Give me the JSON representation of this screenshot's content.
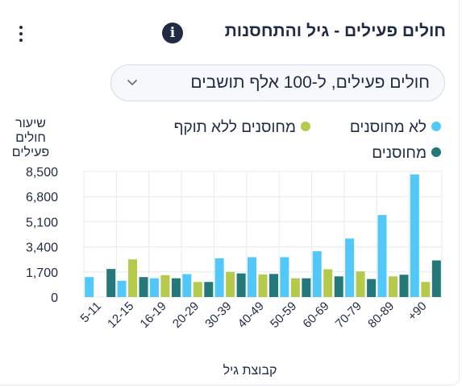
{
  "header": {
    "title": "חולים פעילים - גיל והתחסנות",
    "info_icon": "info-icon",
    "menu_icon": "kebab-menu-icon"
  },
  "select": {
    "value": "חולים פעילים, ל-100 אלף תושבים",
    "icon": "chevron-down-icon"
  },
  "colors": {
    "not_vaccinated": "#52c8f8",
    "expired": "#b5c94a",
    "vaccinated": "#24787a",
    "grid": "#e6e9ef",
    "axis_text": "#222b45"
  },
  "chart_data": {
    "type": "bar",
    "xlabel": "קבוצת גיל",
    "ylabel": "שיעור חולים פעילים",
    "ylim": [
      0,
      8500
    ],
    "yticks": [
      "0",
      "1,700",
      "3,400",
      "5,100",
      "6,800",
      "8,500"
    ],
    "ytick_values": [
      0,
      1700,
      3400,
      5100,
      6800,
      8500
    ],
    "grid": true,
    "legend_position": "top-right",
    "categories": [
      "5-11",
      "12-15",
      "16-19",
      "20-29",
      "30-39",
      "40-49",
      "50-59",
      "60-69",
      "70-79",
      "80-89",
      "90+"
    ],
    "category_labels": [
      "5-11",
      "12-15",
      "16-19",
      "20-29",
      "30-39",
      "40-49",
      "50-59",
      "60-69",
      "70-79",
      "80-89",
      "+90"
    ],
    "series": [
      {
        "name": "לא מחוסנים",
        "color": "#52c8f8",
        "values": [
          1350,
          1100,
          1270,
          1550,
          2620,
          2700,
          2700,
          3100,
          3960,
          5550,
          8300
        ]
      },
      {
        "name": "מחוסנים ללא תוקף",
        "color": "#b5c94a",
        "values": [
          null,
          2550,
          1480,
          1020,
          1700,
          1530,
          1270,
          1880,
          1730,
          1400,
          1020
        ]
      },
      {
        "name": "מחוסנים",
        "color": "#24787a",
        "values": [
          1900,
          1350,
          1270,
          1020,
          1600,
          1560,
          1270,
          1400,
          1220,
          1510,
          2480
        ]
      }
    ]
  }
}
